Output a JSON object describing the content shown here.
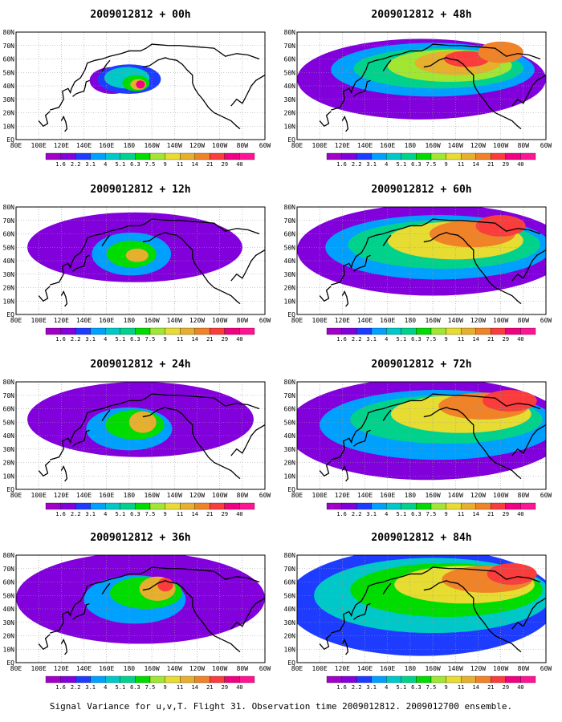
{
  "caption": "Signal Variance for u,v,T. Flight 31. Observation time 2009012812. 2009012700 ensemble.",
  "panel_titles": [
    "2009012812 + 00h",
    "2009012812 + 48h",
    "2009012812 + 12h",
    "2009012812 + 60h",
    "2009012812 + 24h",
    "2009012812 + 72h",
    "2009012812 + 36h",
    "2009012812 + 84h"
  ],
  "chart_data": {
    "type": "heatmap",
    "plot_kind": "filled contour map (North Pacific)",
    "x_tick_labels": [
      "80E",
      "100E",
      "120E",
      "140E",
      "160E",
      "180",
      "160W",
      "140W",
      "120W",
      "100W",
      "80W",
      "60W"
    ],
    "y_tick_labels": [
      "EQ",
      "10N",
      "20N",
      "30N",
      "40N",
      "50N",
      "60N",
      "70N",
      "80N"
    ],
    "xlim": [
      80,
      300
    ],
    "ylim": [
      0,
      80
    ],
    "grid": true,
    "colorbar": {
      "levels": [
        "1.6",
        "2.2",
        "3.1",
        "4",
        "5.1",
        "6.3",
        "7.5",
        "9",
        "11",
        "14",
        "21",
        "29",
        "40"
      ],
      "colors": [
        "#a000c8",
        "#8200dc",
        "#1e3cff",
        "#00a0ff",
        "#00c8c8",
        "#00d28c",
        "#00dc00",
        "#a0e632",
        "#e6dc32",
        "#e6af2d",
        "#f08228",
        "#fa3c3c",
        "#f00082",
        "#ff1493"
      ]
    },
    "forecast_hours": [
      "00h",
      "48h",
      "12h",
      "60h",
      "24h",
      "72h",
      "36h",
      "84h"
    ]
  }
}
